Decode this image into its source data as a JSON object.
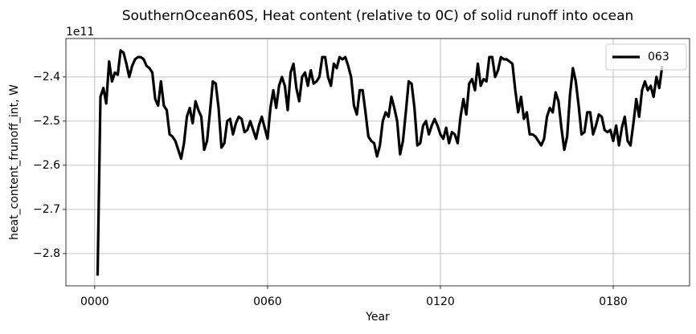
{
  "chart_data": {
    "type": "line",
    "title": "SouthernOcean60S, Heat content (relative to 0C) of solid runoff into ocean",
    "x_label": "Year",
    "y_label": "heat_content_frunoff_int, W",
    "y_offset_text": "1e11",
    "x": [
      1,
      2,
      3,
      4,
      5,
      6,
      7,
      8,
      9,
      10,
      11,
      12,
      13,
      14,
      15,
      16,
      17,
      18,
      19,
      20,
      21,
      22,
      23,
      24,
      25,
      26,
      27,
      28,
      29,
      30,
      31,
      32,
      33,
      34,
      35,
      36,
      37,
      38,
      39,
      40,
      41,
      42,
      43,
      44,
      45,
      46,
      47,
      48,
      49,
      50,
      51,
      52,
      53,
      54,
      55,
      56,
      57,
      58,
      59,
      60,
      61,
      62,
      63,
      64,
      65,
      66,
      67,
      68,
      69,
      70,
      71,
      72,
      73,
      74,
      75,
      76,
      77,
      78,
      79,
      80,
      81,
      82,
      83,
      84,
      85,
      86,
      87,
      88,
      89,
      90,
      91,
      92,
      93,
      94,
      95,
      96,
      97,
      98,
      99,
      100,
      101,
      102,
      103,
      104,
      105,
      106,
      107,
      108,
      109,
      110,
      111,
      112,
      113,
      114,
      115,
      116,
      117,
      118,
      119,
      120,
      121,
      122,
      123,
      124,
      125,
      126,
      127,
      128,
      129,
      130,
      131,
      132,
      133,
      134,
      135,
      136,
      137,
      138,
      139,
      140,
      141,
      142,
      143,
      144,
      145,
      146,
      147,
      148,
      149,
      150,
      151,
      152,
      153,
      154,
      155,
      156,
      157,
      158,
      159,
      160,
      161,
      162,
      163,
      164,
      165,
      166,
      167,
      168,
      169,
      170,
      171,
      172,
      173,
      174,
      175,
      176,
      177,
      178,
      179,
      180,
      181,
      182,
      183,
      184,
      185,
      186,
      187,
      188,
      189,
      190,
      191,
      192,
      193,
      194,
      195,
      196,
      197
    ],
    "series": [
      {
        "name": "063",
        "color": "#000000",
        "values": [
          -2.85,
          -2.445,
          -2.425,
          -2.46,
          -2.365,
          -2.41,
          -2.39,
          -2.395,
          -2.34,
          -2.345,
          -2.37,
          -2.4,
          -2.375,
          -2.36,
          -2.355,
          -2.355,
          -2.36,
          -2.375,
          -2.38,
          -2.39,
          -2.45,
          -2.465,
          -2.41,
          -2.465,
          -2.475,
          -2.53,
          -2.535,
          -2.545,
          -2.565,
          -2.585,
          -2.55,
          -2.49,
          -2.47,
          -2.505,
          -2.455,
          -2.475,
          -2.49,
          -2.565,
          -2.545,
          -2.48,
          -2.41,
          -2.415,
          -2.47,
          -2.56,
          -2.55,
          -2.5,
          -2.495,
          -2.53,
          -2.505,
          -2.49,
          -2.495,
          -2.525,
          -2.52,
          -2.5,
          -2.52,
          -2.54,
          -2.51,
          -2.49,
          -2.515,
          -2.54,
          -2.47,
          -2.43,
          -2.47,
          -2.42,
          -2.4,
          -2.42,
          -2.475,
          -2.39,
          -2.37,
          -2.425,
          -2.455,
          -2.4,
          -2.39,
          -2.42,
          -2.385,
          -2.415,
          -2.41,
          -2.4,
          -2.355,
          -2.355,
          -2.4,
          -2.42,
          -2.37,
          -2.38,
          -2.355,
          -2.36,
          -2.355,
          -2.375,
          -2.4,
          -2.465,
          -2.485,
          -2.43,
          -2.43,
          -2.48,
          -2.535,
          -2.545,
          -2.55,
          -2.58,
          -2.555,
          -2.5,
          -2.48,
          -2.49,
          -2.445,
          -2.47,
          -2.5,
          -2.575,
          -2.545,
          -2.48,
          -2.41,
          -2.415,
          -2.47,
          -2.555,
          -2.55,
          -2.51,
          -2.5,
          -2.53,
          -2.51,
          -2.495,
          -2.51,
          -2.53,
          -2.54,
          -2.515,
          -2.55,
          -2.525,
          -2.53,
          -2.55,
          -2.49,
          -2.45,
          -2.485,
          -2.415,
          -2.405,
          -2.43,
          -2.37,
          -2.42,
          -2.405,
          -2.41,
          -2.355,
          -2.355,
          -2.4,
          -2.385,
          -2.355,
          -2.36,
          -2.36,
          -2.365,
          -2.37,
          -2.43,
          -2.48,
          -2.445,
          -2.495,
          -2.48,
          -2.53,
          -2.53,
          -2.535,
          -2.545,
          -2.555,
          -2.54,
          -2.49,
          -2.47,
          -2.48,
          -2.435,
          -2.455,
          -2.515,
          -2.565,
          -2.535,
          -2.44,
          -2.38,
          -2.41,
          -2.465,
          -2.53,
          -2.525,
          -2.48,
          -2.48,
          -2.53,
          -2.51,
          -2.485,
          -2.49,
          -2.52,
          -2.525,
          -2.52,
          -2.545,
          -2.51,
          -2.555,
          -2.515,
          -2.49,
          -2.545,
          -2.555,
          -2.505,
          -2.45,
          -2.49,
          -2.43,
          -2.41,
          -2.43,
          -2.42,
          -2.445,
          -2.4,
          -2.425,
          -2.375
        ]
      }
    ],
    "xlim": [
      -10,
      206.5
    ],
    "xticks": [
      {
        "value": 0,
        "label": "0000"
      },
      {
        "value": 60,
        "label": "0060"
      },
      {
        "value": 120,
        "label": "0120"
      },
      {
        "value": 180,
        "label": "0180"
      }
    ],
    "ylim": [
      -2.873,
      -2.313
    ],
    "yticks": [
      {
        "value": -2.8,
        "label": "−2.8"
      },
      {
        "value": -2.7,
        "label": "−2.7"
      },
      {
        "value": -2.6,
        "label": "−2.6"
      },
      {
        "value": -2.5,
        "label": "−2.5"
      },
      {
        "value": -2.4,
        "label": "−2.4"
      }
    ],
    "grid": true,
    "legend": "upper right"
  }
}
